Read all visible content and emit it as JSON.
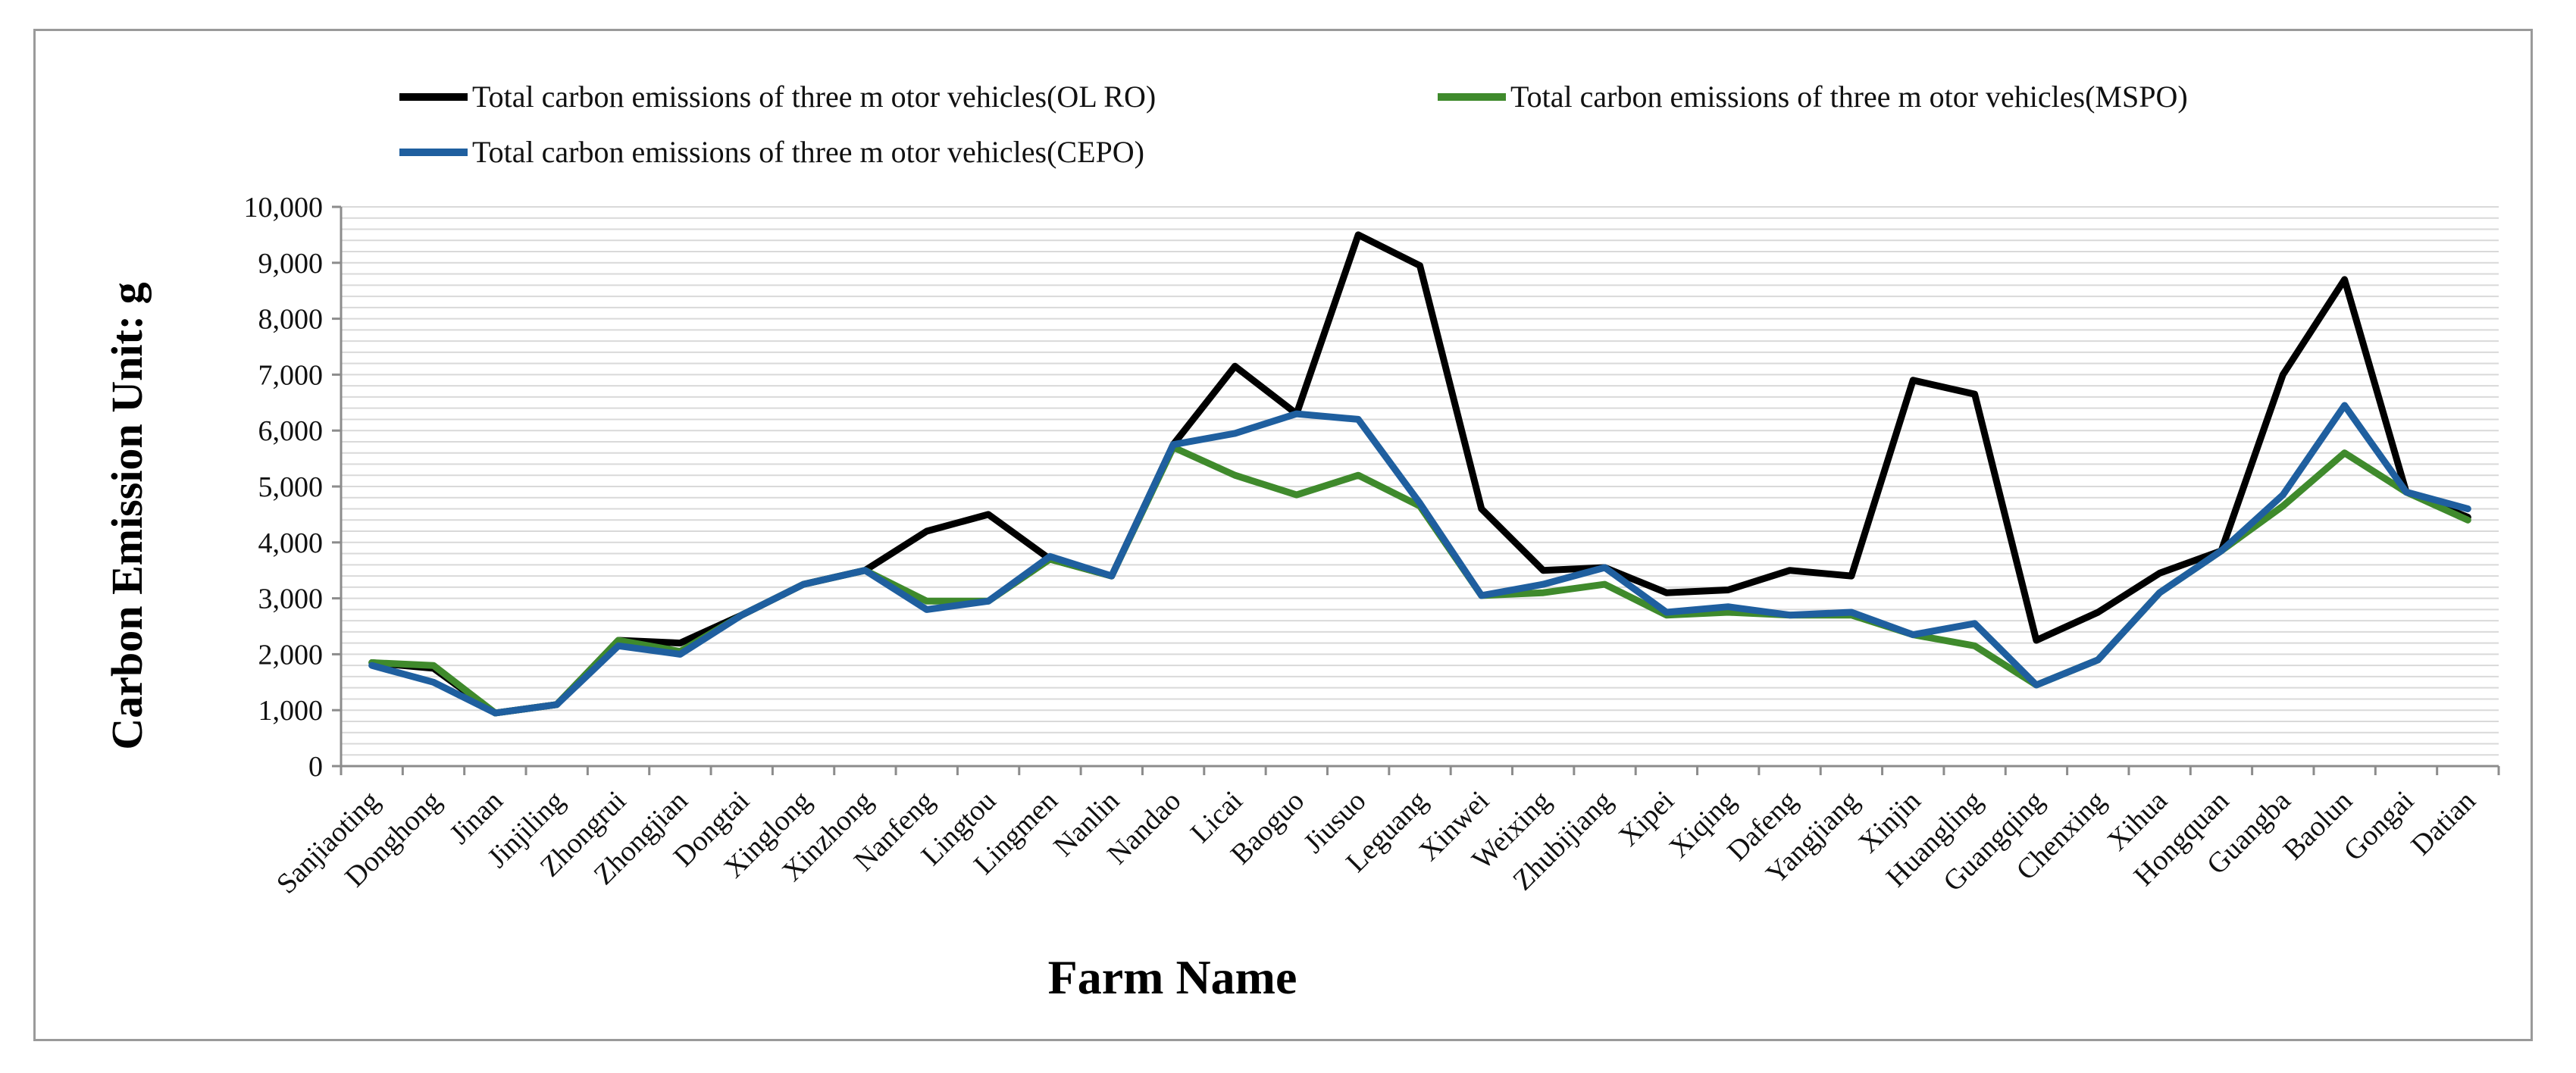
{
  "chart_data": {
    "type": "line",
    "title": "",
    "xlabel": "Farm Name",
    "ylabel": "Carbon Emission   Unit: g",
    "ylim": [
      0,
      10000
    ],
    "yticks": [
      0,
      1000,
      2000,
      3000,
      4000,
      5000,
      6000,
      7000,
      8000,
      9000,
      10000
    ],
    "ytick_labels": [
      "0",
      "1,000",
      "2,000",
      "3,000",
      "4,000",
      "5,000",
      "6,000",
      "7,000",
      "8,000",
      "9,000",
      "10,000"
    ],
    "grid": true,
    "legend_position": "top",
    "categories": [
      "Sanjiaoting",
      "Donghong",
      "Jinan",
      "Jinjiling",
      "Zhongrui",
      "Zhongjian",
      "Dongtai",
      "Xinglong",
      "Xinzhong",
      "Nanfeng",
      "Lingtou",
      "Lingmen",
      "Nanlin",
      "Nandao",
      "Licai",
      "Baoguo",
      "Jiusuo",
      "Leguang",
      "Xinwei",
      "Weixing",
      "Zhubijiang",
      "Xipei",
      "Xiqing",
      "Dafeng",
      "Yangjiang",
      "Xinjin",
      "Huangling",
      "Guangqing",
      "Chenxing",
      "Xihua",
      "Hongquan",
      "Guangba",
      "Baolun",
      "Gongai",
      "Datian"
    ],
    "series": [
      {
        "name": "Total carbon emissions of three m otor vehicles(OL RO)",
        "color": "#000000",
        "values": [
          1850,
          1750,
          950,
          1100,
          2250,
          2200,
          2700,
          3250,
          3500,
          4200,
          4500,
          3700,
          3400,
          5750,
          7150,
          6300,
          9500,
          8950,
          4600,
          3500,
          3550,
          3100,
          3150,
          3500,
          3400,
          6900,
          6650,
          2250,
          2750,
          3450,
          3850,
          7000,
          8700,
          4900,
          4450
        ]
      },
      {
        "name": "Total carbon emissions of three m otor vehicles(MSPO)",
        "color": "#3f8a2c",
        "values": [
          1850,
          1800,
          950,
          1100,
          2250,
          2050,
          2700,
          3250,
          3500,
          2950,
          2950,
          3700,
          3400,
          5700,
          5200,
          4850,
          5200,
          4650,
          3050,
          3100,
          3250,
          2700,
          2750,
          2700,
          2700,
          2350,
          2150,
          1450,
          1900,
          3100,
          3850,
          4650,
          5600,
          4900,
          4400
        ]
      },
      {
        "name": "Total carbon emissions of three m otor vehicles(CEPO)",
        "color": "#1f5f9f",
        "values": [
          1800,
          1500,
          950,
          1100,
          2150,
          2000,
          2700,
          3250,
          3500,
          2800,
          2950,
          3750,
          3400,
          5750,
          5950,
          6300,
          6200,
          4700,
          3050,
          3250,
          3550,
          2750,
          2850,
          2700,
          2750,
          2350,
          2550,
          1450,
          1900,
          3100,
          3850,
          4850,
          6450,
          4900,
          4600
        ]
      }
    ]
  }
}
